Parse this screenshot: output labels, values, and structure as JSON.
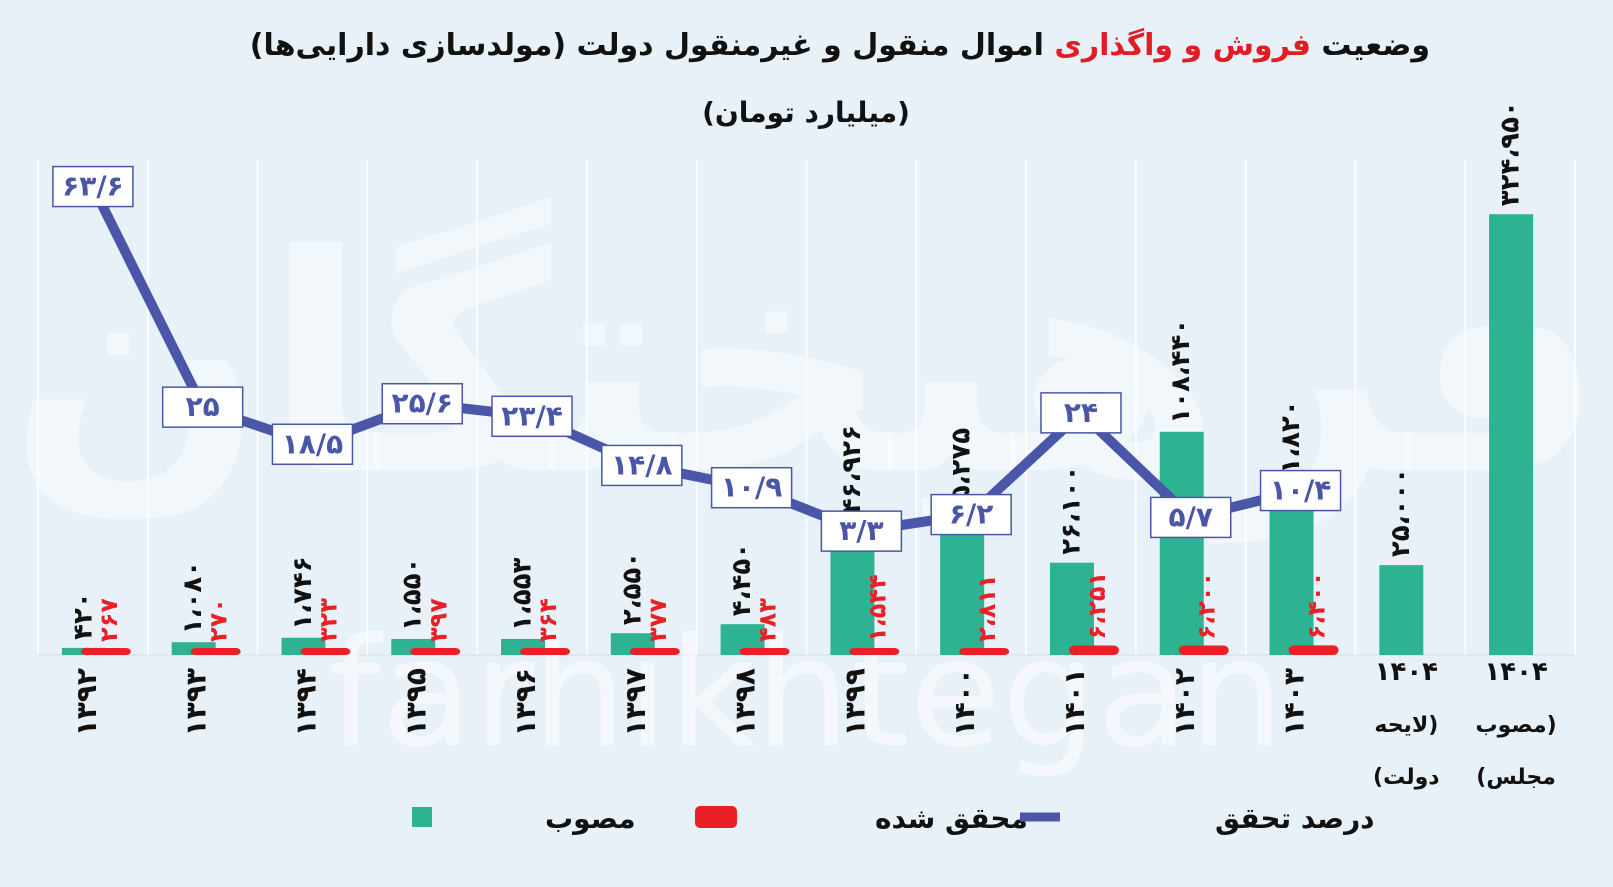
{
  "title": {
    "part1": "وضعیت ",
    "highlight": "فروش و واگذاری",
    "part2": " اموال منقول و غیرمنقول دولت (مولدسازی دارایی‌ها)",
    "subtitle": "(میلیارد تومان)"
  },
  "watermark": {
    "text1": "فرهیختگان",
    "text2": "farhikhtegan"
  },
  "colors": {
    "background": "#e8f1f8",
    "approved": "#2db391",
    "realized": "#ea2027",
    "percent_line": "#4a56a8",
    "title": "#111111",
    "highlight": "#e41b23",
    "grid": "#ffffff"
  },
  "legend": {
    "approved": "مصوب",
    "realized": "محقق شده",
    "percent": "درصد تحقق"
  },
  "chart_data": {
    "type": "bar",
    "categories": [
      [
        "۱۳۹۲"
      ],
      [
        "۱۳۹۳"
      ],
      [
        "۱۳۹۴"
      ],
      [
        "۱۳۹۵"
      ],
      [
        "۱۳۹۶"
      ],
      [
        "۱۳۹۷"
      ],
      [
        "۱۳۹۸"
      ],
      [
        "۱۳۹۹"
      ],
      [
        "۱۴۰۰"
      ],
      [
        "۱۴۰۱"
      ],
      [
        "۱۴۰۲"
      ],
      [
        "۱۴۰۳"
      ],
      [
        "۱۴۰۴",
        "(لایحه",
        "دولت)"
      ],
      [
        "۱۴۰۴",
        "(مصوب",
        "مجلس)"
      ]
    ],
    "series": [
      {
        "name": "مصوب",
        "values": [
          420,
          1080,
          1746,
          1550,
          1553,
          2550,
          4450,
          46926,
          45275,
          26100,
          108440,
          61820,
          25000,
          324950
        ],
        "labels": [
          "۴۲۰",
          "۱،۰۸۰",
          "۱،۷۴۶",
          "۱،۵۵۰",
          "۱،۵۵۳",
          "۲،۵۵۰",
          "۴،۴۵۰",
          "۴۶،۹۲۶",
          "۴۵،۲۷۵",
          "۲۶،۱۰۰",
          "۱۰۸،۴۴۰",
          "۶۱،۸۲۰",
          "۲۵،۰۰۰",
          "۳۲۴،۹۵۰"
        ]
      },
      {
        "name": "محقق شده",
        "values": [
          267,
          270,
          323,
          397,
          364,
          377,
          483,
          1544,
          2811,
          6251,
          6200,
          6400,
          null,
          null
        ],
        "labels": [
          "۲۶۷",
          "۲۷۰",
          "۳۲۳",
          "۳۹۷",
          "۳۶۴",
          "۳۷۷",
          "۴۸۳",
          "۱،۵۴۴",
          "۲،۸۱۱",
          "۶،۲۵۱",
          "۶،۲۰۰",
          "۶،۴۰۰",
          "",
          ""
        ]
      },
      {
        "name": "درصد تحقق",
        "values": [
          63.6,
          25,
          18.5,
          25.6,
          23.4,
          14.8,
          10.9,
          3.3,
          6.2,
          24,
          5.7,
          10.4,
          null,
          null
        ],
        "labels": [
          "۶۳/۶",
          "۲۵",
          "۱۸/۵",
          "۲۵/۶",
          "۲۳/۴",
          "۱۴/۸",
          "۱۰/۹",
          "۳/۳",
          "۶/۲",
          "۲۴",
          "۵/۷",
          "۱۰/۴",
          "",
          ""
        ]
      }
    ],
    "bar_ylim": [
      0,
      330000
    ],
    "bar_compression_exponent": 0.62,
    "line_ylim": [
      0,
      70
    ]
  }
}
